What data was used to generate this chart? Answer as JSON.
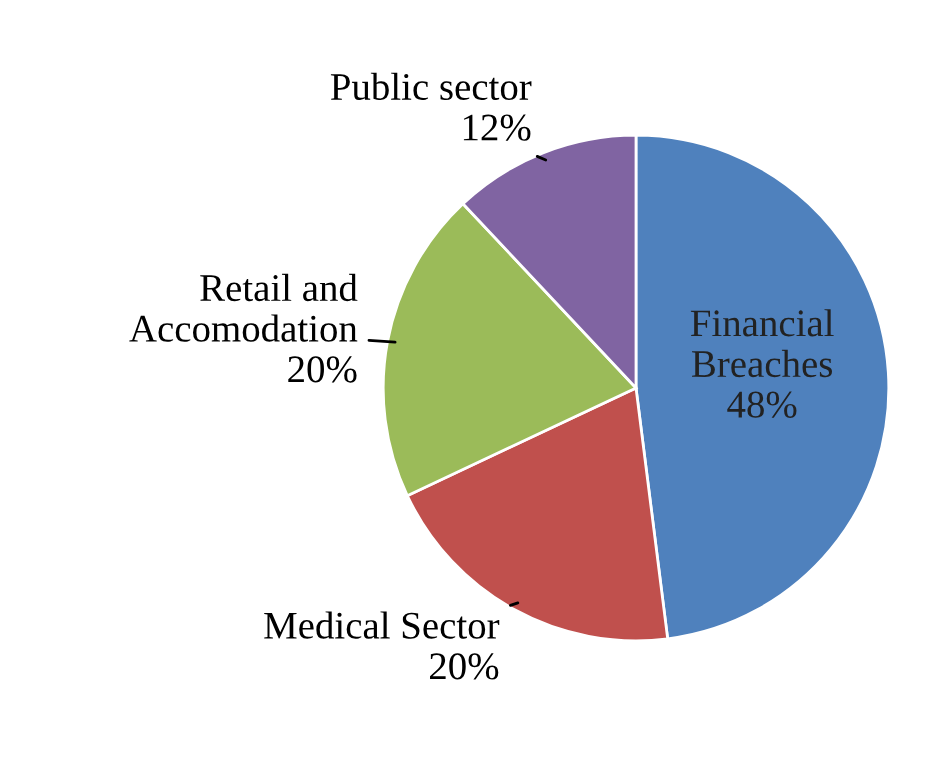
{
  "chart_data": {
    "type": "pie",
    "categories": [
      "Financial Breaches",
      "Medical Sector",
      "Retail and Accomodation",
      "Public sector"
    ],
    "values": [
      48,
      20,
      20,
      12
    ],
    "colors": [
      "#4f81bd",
      "#c0504d",
      "#9bbb59",
      "#8064a2"
    ],
    "value_labels": [
      "48%",
      "20%",
      "20%",
      "12%"
    ]
  }
}
